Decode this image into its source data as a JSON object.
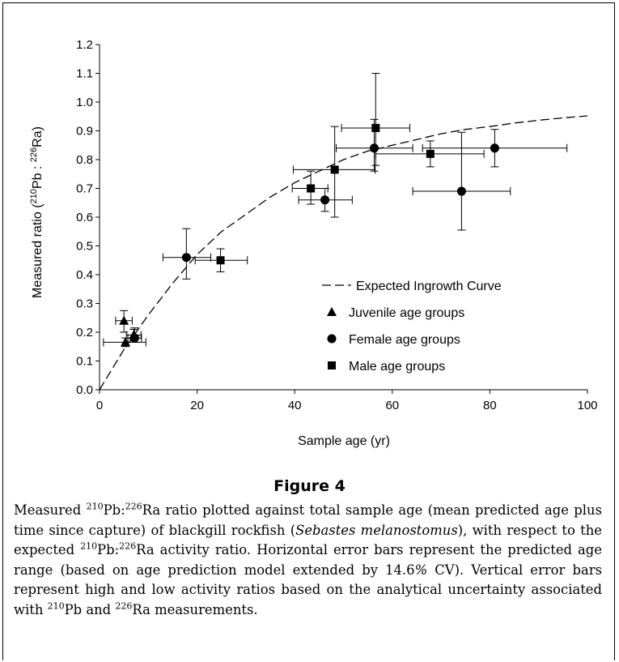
{
  "chart_data": {
    "type": "scatter",
    "xlabel": "Sample age (yr)",
    "ylabel_main": "Measured ratio (",
    "ylabel_iso1": "210",
    "ylabel_el1": "Pb : ",
    "ylabel_iso2": "226",
    "ylabel_el2": "Ra)",
    "xlim": [
      0,
      100
    ],
    "ylim": [
      0.0,
      1.2
    ],
    "x_ticks": [
      0,
      20,
      40,
      60,
      80,
      100
    ],
    "y_ticks": [
      "0.0",
      "0.1",
      "0.2",
      "0.3",
      "0.4",
      "0.5",
      "0.6",
      "0.7",
      "0.8",
      "0.9",
      "1.0",
      "1.1",
      "1.2"
    ],
    "grid": false,
    "legend_position": "lower-right",
    "curve": {
      "name": "Expected Ingrowth Curve",
      "style": "dashed",
      "x": [
        0,
        5,
        10,
        15,
        20,
        25,
        30,
        35,
        40,
        45,
        50,
        55,
        60,
        65,
        70,
        75,
        80,
        85,
        90,
        95,
        100
      ],
      "y": [
        0.0,
        0.14,
        0.26,
        0.37,
        0.47,
        0.55,
        0.61,
        0.67,
        0.72,
        0.76,
        0.8,
        0.83,
        0.85,
        0.87,
        0.89,
        0.905,
        0.915,
        0.927,
        0.937,
        0.945,
        0.952
      ]
    },
    "series": [
      {
        "name": "Juvenile age groups",
        "marker": "triangle",
        "points": [
          {
            "x": 5.0,
            "y": 0.24,
            "xlo": 3.3,
            "xhi": 6.7,
            "ylo": 0.2,
            "yhi": 0.275
          },
          {
            "x": 5.3,
            "y": 0.165,
            "xlo": 0.8,
            "xhi": 9.5,
            "ylo": 0.15,
            "yhi": 0.18
          },
          {
            "x": 7.0,
            "y": 0.19,
            "xlo": 5.5,
            "xhi": 8.5,
            "ylo": 0.17,
            "yhi": 0.21
          }
        ]
      },
      {
        "name": "Female age groups",
        "marker": "circle",
        "points": [
          {
            "x": 7.2,
            "y": 0.18,
            "xlo": 5.8,
            "xhi": 8.6,
            "ylo": 0.165,
            "yhi": 0.215
          },
          {
            "x": 17.8,
            "y": 0.46,
            "xlo": 13.0,
            "xhi": 22.8,
            "ylo": 0.385,
            "yhi": 0.56
          },
          {
            "x": 46.2,
            "y": 0.66,
            "xlo": 40.8,
            "xhi": 51.8,
            "ylo": 0.62,
            "yhi": 0.7
          },
          {
            "x": 56.3,
            "y": 0.84,
            "xlo": 48.5,
            "xhi": 64.2,
            "ylo": 0.76,
            "yhi": 0.94
          },
          {
            "x": 74.2,
            "y": 0.69,
            "xlo": 64.2,
            "xhi": 84.2,
            "ylo": 0.555,
            "yhi": 0.895
          },
          {
            "x": 81.0,
            "y": 0.84,
            "xlo": 66.2,
            "xhi": 95.8,
            "ylo": 0.775,
            "yhi": 0.905
          }
        ]
      },
      {
        "name": "Male age groups",
        "marker": "square",
        "points": [
          {
            "x": 24.8,
            "y": 0.45,
            "xlo": 19.6,
            "xhi": 30.3,
            "ylo": 0.41,
            "yhi": 0.49
          },
          {
            "x": 43.3,
            "y": 0.7,
            "xlo": 39.5,
            "xhi": 46.8,
            "ylo": 0.645,
            "yhi": 0.76
          },
          {
            "x": 48.2,
            "y": 0.765,
            "xlo": 39.7,
            "xhi": 56.5,
            "ylo": 0.6,
            "yhi": 0.915
          },
          {
            "x": 56.6,
            "y": 0.91,
            "xlo": 49.6,
            "xhi": 63.6,
            "ylo": 0.78,
            "yhi": 1.1
          },
          {
            "x": 67.8,
            "y": 0.82,
            "xlo": 56.6,
            "xhi": 78.8,
            "ylo": 0.775,
            "yhi": 0.865
          }
        ]
      }
    ]
  },
  "figure": {
    "title": "Figure 4",
    "caption": {
      "p1": "Measured ",
      "iso210": "210",
      "p2": "Pb:",
      "iso226": "226",
      "p3": "Ra ratio plotted against total sample age (mean predicted age plus time since capture) of blackgill rockfish (",
      "species": "Sebastes melanostomus",
      "p4": "), with respect to the expected ",
      "iso210b": "210",
      "p5": "Pb:",
      "iso226b": "226",
      "p6": "Ra activity ratio. Horizontal error bars represent the predicted age range (based on age prediction model extended by 14.6",
      "pct": "%",
      "p7": " CV). Vertical error bars represent high and low activity ratios based on the analytical uncertainty associated with ",
      "iso210c": "210",
      "p8": "Pb and ",
      "iso226c": "226",
      "p9": "Ra measurements."
    }
  }
}
